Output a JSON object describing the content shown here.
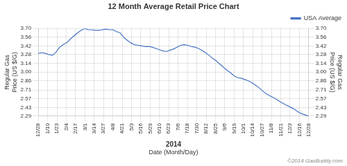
{
  "chart_data": {
    "type": "line",
    "title": "12 Month Average Retail Price Chart",
    "xlabel": "Date (Month/Day)",
    "ylabel": "Regular Gas\nPrice (US $/G)",
    "y2label": "Regular Gas\nPrice (US $/G)",
    "annotations": [
      "2014",
      "©2014 GasBuddy.com"
    ],
    "x": [
      0,
      0.3816,
      0.7632,
      1.1447,
      1.5263,
      1.9079,
      2.2895,
      2.6711,
      3.0526,
      3.4342,
      3.8158,
      4.1974,
      4.5789,
      4.9605,
      5.3421,
      5.7237,
      6.1053,
      6.4868,
      6.8684,
      7.25,
      7.6316,
      8.0132,
      8.3947,
      8.7763,
      9.1579,
      9.5395,
      9.9211,
      10.3026,
      10.6842,
      11.0658,
      11.4474,
      11.8289,
      12.2105,
      12.5921,
      12.9737,
      13.3553,
      13.7368,
      14.1184,
      14.5,
      14.8816,
      15.2632,
      15.6447,
      16.0263,
      16.4079,
      16.7895,
      17.1711,
      17.5526,
      17.9342,
      18.3158,
      18.6974,
      19.0789,
      19.4605,
      19.8421,
      20.2237,
      20.6053,
      20.9868,
      21.3684,
      21.75,
      22.1316,
      22.5132,
      22.8947,
      23.2763,
      23.6579,
      24.0395,
      24.4211,
      24.8026,
      25.1842,
      25.5658,
      25.9474,
      26.3289,
      26.7105,
      27.0921,
      27.4737,
      27.8553,
      28.2368,
      28.6184,
      29
    ],
    "series": [
      {
        "name": "USA Average",
        "color": "#4472C4",
        "values": [
          3.3,
          3.31,
          3.3,
          3.28,
          3.27,
          3.32,
          3.4,
          3.44,
          3.47,
          3.53,
          3.58,
          3.63,
          3.67,
          3.7,
          3.68,
          3.68,
          3.67,
          3.67,
          3.68,
          3.69,
          3.68,
          3.68,
          3.65,
          3.63,
          3.56,
          3.51,
          3.47,
          3.44,
          3.43,
          3.42,
          3.41,
          3.41,
          3.4,
          3.38,
          3.36,
          3.34,
          3.33,
          3.35,
          3.37,
          3.4,
          3.43,
          3.44,
          3.43,
          3.41,
          3.4,
          3.38,
          3.35,
          3.31,
          3.27,
          3.22,
          3.18,
          3.13,
          3.08,
          3.03,
          2.99,
          2.94,
          2.91,
          2.9,
          2.88,
          2.86,
          2.83,
          2.79,
          2.75,
          2.7,
          2.65,
          2.62,
          2.59,
          2.56,
          2.52,
          2.49,
          2.46,
          2.43,
          2.4,
          2.36,
          2.33,
          2.31,
          2.29
        ]
      }
    ],
    "xlim": [
      0,
      29
    ],
    "xticks": [
      {
        "value": 0,
        "label": "12/28"
      },
      {
        "value": 1,
        "label": "1/10"
      },
      {
        "value": 2,
        "label": "1/23"
      },
      {
        "value": 3,
        "label": "2/4"
      },
      {
        "value": 4,
        "label": "2/17"
      },
      {
        "value": 5,
        "label": "3/1"
      },
      {
        "value": 6,
        "label": "3/14"
      },
      {
        "value": 7,
        "label": "3/27"
      },
      {
        "value": 8,
        "label": "4/8"
      },
      {
        "value": 9,
        "label": "4/21"
      },
      {
        "value": 10,
        "label": "5/3"
      },
      {
        "value": 11,
        "label": "5/16"
      },
      {
        "value": 12,
        "label": "5/29"
      },
      {
        "value": 13,
        "label": "6/10"
      },
      {
        "value": 14,
        "label": "6/23"
      },
      {
        "value": 15,
        "label": "7/6"
      },
      {
        "value": 16,
        "label": "7/18"
      },
      {
        "value": 17,
        "label": "7/30"
      },
      {
        "value": 18,
        "label": "8/12"
      },
      {
        "value": 19,
        "label": "8/25"
      },
      {
        "value": 20,
        "label": "9/6"
      },
      {
        "value": 21,
        "label": "9/19"
      },
      {
        "value": 22,
        "label": "10/1"
      },
      {
        "value": 23,
        "label": "10/14"
      },
      {
        "value": 24,
        "label": "10/27"
      },
      {
        "value": 25,
        "label": "11/8"
      },
      {
        "value": 26,
        "label": "11/21"
      },
      {
        "value": 27,
        "label": "12/3"
      },
      {
        "value": 28,
        "label": "12/16"
      },
      {
        "value": 29,
        "label": "12/28"
      }
    ],
    "ylim": [
      2.29,
      3.7
    ],
    "yticks": [
      2.29,
      2.43,
      2.57,
      2.71,
      2.86,
      {
        "value": 3.0,
        "label": "3.00"
      },
      3.14,
      3.28,
      3.42,
      3.56,
      {
        "value": 3.7,
        "label": "3.70"
      }
    ],
    "y2lim": [
      2.29,
      3.7
    ],
    "y2ticks": [
      2.29,
      2.43,
      2.57,
      2.71,
      2.86,
      {
        "value": 3.0,
        "label": "3.00"
      },
      3.14,
      3.28,
      3.42,
      3.56,
      {
        "value": 3.7,
        "label": "3.70"
      }
    ],
    "grid": true,
    "legend": "upper right"
  }
}
